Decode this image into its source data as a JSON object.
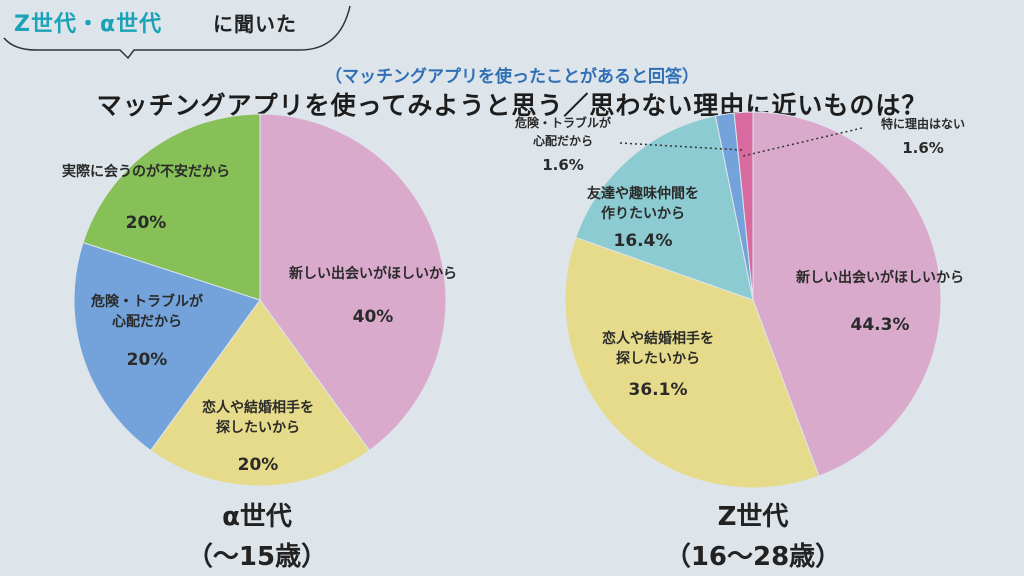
{
  "header": {
    "tag_highlight": "Z世代・α世代",
    "tag_rest": "に聞いた",
    "subtitle": "（マッチングアプリを使ったことがあると回答）",
    "title": "マッチングアプリを使ってみようと思う／思わない理由に近いものは？"
  },
  "colors": {
    "pink": "#d9aacb",
    "yellow": "#e6db8a",
    "blue": "#73a3da",
    "green": "#86c057",
    "teal": "#8ccbd1",
    "magenta": "#d86aa0",
    "tag_accent": "#1aa3b8",
    "subtitle": "#2f6fb5"
  },
  "chart_data": [
    {
      "type": "pie",
      "caption_line1": "α世代",
      "caption_line2": "（〜15歳）",
      "slices": [
        {
          "label": [
            "新しい出会いがほしいから"
          ],
          "value": 40,
          "value_label": "40%",
          "color": "#d9aacb"
        },
        {
          "label": [
            "恋人や結婚相手を",
            "探したいから"
          ],
          "value": 20,
          "value_label": "20%",
          "color": "#e6db8a"
        },
        {
          "label": [
            "危険・トラブルが",
            "心配だから"
          ],
          "value": 20,
          "value_label": "20%",
          "color": "#73a3da"
        },
        {
          "label": [
            "実際に会うのが不安だから"
          ],
          "value": 20,
          "value_label": "20%",
          "color": "#86c057"
        }
      ]
    },
    {
      "type": "pie",
      "caption_line1": "Z世代",
      "caption_line2": "（16〜28歳）",
      "slices": [
        {
          "label": [
            "新しい出会いがほしいから"
          ],
          "value": 44.3,
          "value_label": "44.3%",
          "color": "#d9aacb"
        },
        {
          "label": [
            "恋人や結婚相手を",
            "探したいから"
          ],
          "value": 36.1,
          "value_label": "36.1%",
          "color": "#e6db8a"
        },
        {
          "label": [
            "友達や趣味仲間を",
            "作りたいから"
          ],
          "value": 16.4,
          "value_label": "16.4%",
          "color": "#8ccbd1"
        },
        {
          "label": [
            "危険・トラブルが",
            "心配だから"
          ],
          "value": 1.6,
          "value_label": "1.6%",
          "color": "#73a3da"
        },
        {
          "label": [
            "特に理由はない"
          ],
          "value": 1.6,
          "value_label": "1.6%",
          "color": "#d86aa0"
        }
      ]
    }
  ]
}
